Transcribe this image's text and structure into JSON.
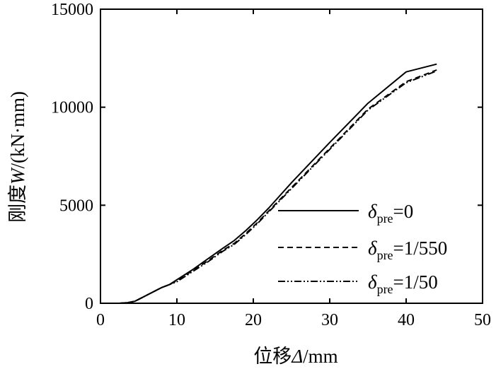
{
  "chart_data": {
    "type": "line",
    "title": "",
    "xlabel": {
      "prefix": "位移",
      "symbol": "Δ",
      "unit": "/mm"
    },
    "ylabel": {
      "prefix": "刚度",
      "symbol": "W",
      "unit": "/(kN·mm)"
    },
    "xlim": [
      0,
      50
    ],
    "ylim": [
      0,
      15000
    ],
    "xticks": [
      0,
      10,
      20,
      30,
      40,
      50
    ],
    "yticks": [
      0,
      5000,
      10000,
      15000
    ],
    "grid": false,
    "legend_position": "lower-right",
    "series": [
      {
        "name": {
          "symbol": "δ",
          "sub": "pre",
          "value": "=0"
        },
        "dash": "solid",
        "x": [
          2.5,
          3.5,
          4.5,
          5.5,
          6.5,
          8.0,
          9.0,
          10.0,
          12.0,
          14.0,
          16.0,
          17.5,
          19.0,
          20.5,
          22.0,
          25.0,
          30.0,
          35.0,
          40.0,
          44.0
        ],
        "y": [
          0,
          30,
          100,
          300,
          500,
          800,
          950,
          1200,
          1700,
          2250,
          2800,
          3200,
          3700,
          4250,
          4850,
          6150,
          8200,
          10200,
          11800,
          12200
        ]
      },
      {
        "name": {
          "symbol": "δ",
          "sub": "pre",
          "value": "=1/550"
        },
        "dash": "dashed",
        "x": [
          2.5,
          3.5,
          4.5,
          5.5,
          6.5,
          8.0,
          9.0,
          10.0,
          12.0,
          14.0,
          16.0,
          17.5,
          19.0,
          20.5,
          22.0,
          25.0,
          30.0,
          35.0,
          40.0,
          44.0
        ],
        "y": [
          0,
          30,
          100,
          300,
          500,
          800,
          950,
          1150,
          1650,
          2150,
          2700,
          3050,
          3550,
          4100,
          4700,
          5900,
          7900,
          9900,
          11300,
          11900
        ]
      },
      {
        "name": {
          "symbol": "δ",
          "sub": "pre",
          "value": "=1/50"
        },
        "dash": "dash-dot-dot",
        "x": [
          2.5,
          3.5,
          4.5,
          5.5,
          6.5,
          8.0,
          9.0,
          10.0,
          12.0,
          14.0,
          16.0,
          17.5,
          19.0,
          20.5,
          22.0,
          25.0,
          30.0,
          35.0,
          40.0,
          44.0
        ],
        "y": [
          0,
          30,
          100,
          300,
          500,
          800,
          950,
          1100,
          1600,
          2100,
          2650,
          3000,
          3500,
          4050,
          4650,
          5850,
          7850,
          9850,
          11250,
          11850
        ]
      }
    ]
  }
}
